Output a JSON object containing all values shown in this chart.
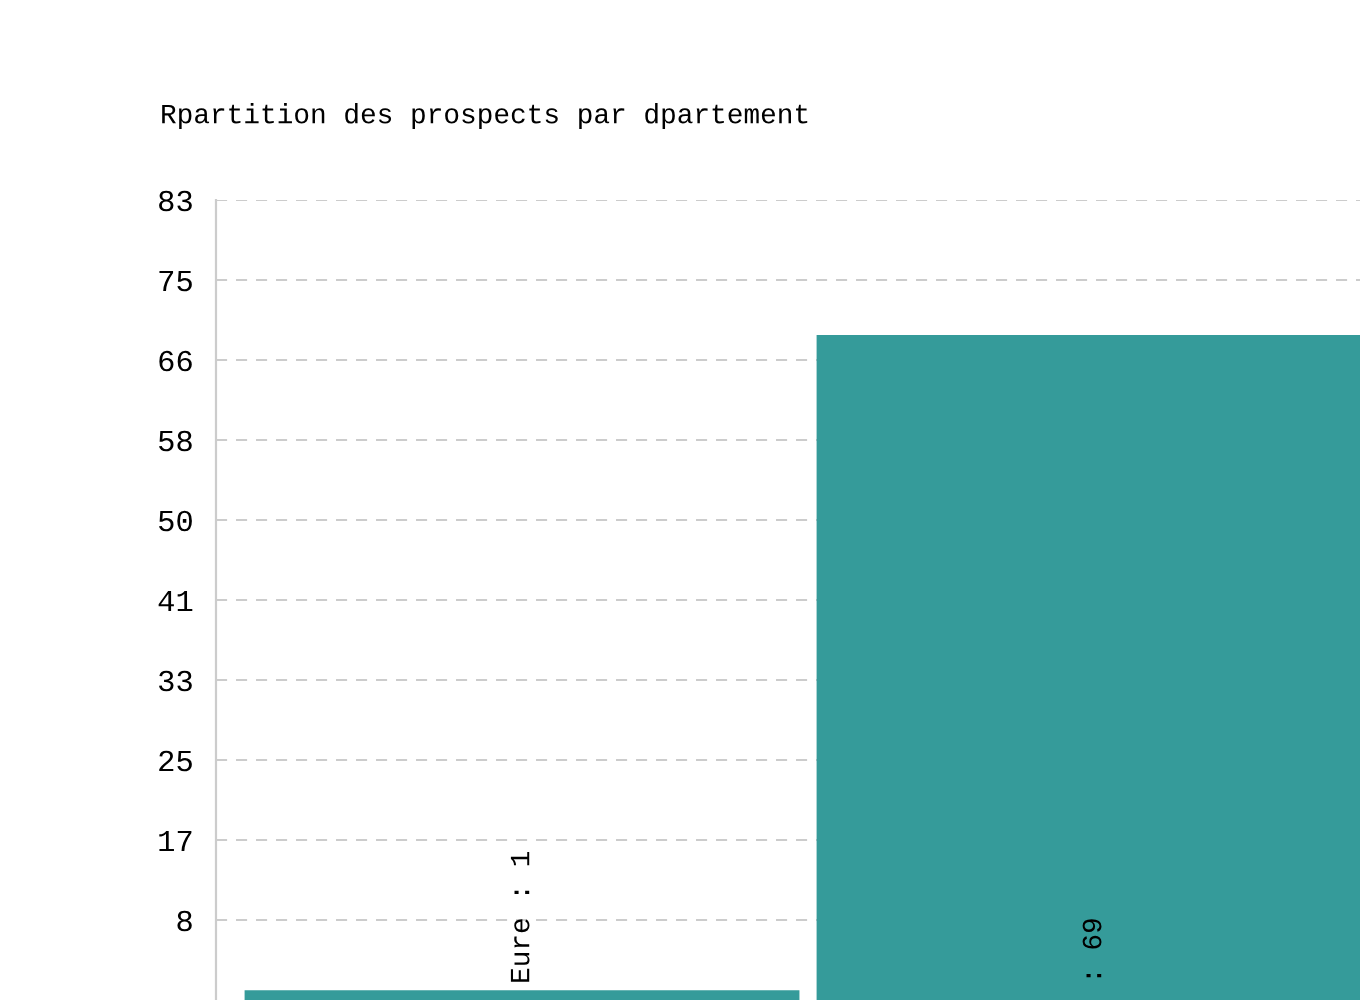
{
  "chart_data": {
    "type": "bar",
    "title": "Rpartition des prospects par dpartement",
    "categories": [
      null,
      null
    ],
    "values": [
      1,
      69
    ],
    "color": "#359b9a",
    "value_labels": [
      "Eure : 1",
      ": 69"
    ],
    "ylim": [
      0,
      83
    ],
    "yticks": [
      {
        "value": 8.3,
        "label": "8"
      },
      {
        "value": 16.6,
        "label": "17"
      },
      {
        "value": 24.9,
        "label": "25"
      },
      {
        "value": 33.2,
        "label": "33"
      },
      {
        "value": 41.5,
        "label": "41"
      },
      {
        "value": 49.8,
        "label": "50"
      },
      {
        "value": 58.1,
        "label": "58"
      },
      {
        "value": 66.4,
        "label": "66"
      },
      {
        "value": 74.7,
        "label": "75"
      },
      {
        "value": 83,
        "label": "83"
      }
    ],
    "grid": "y",
    "legend": false
  }
}
